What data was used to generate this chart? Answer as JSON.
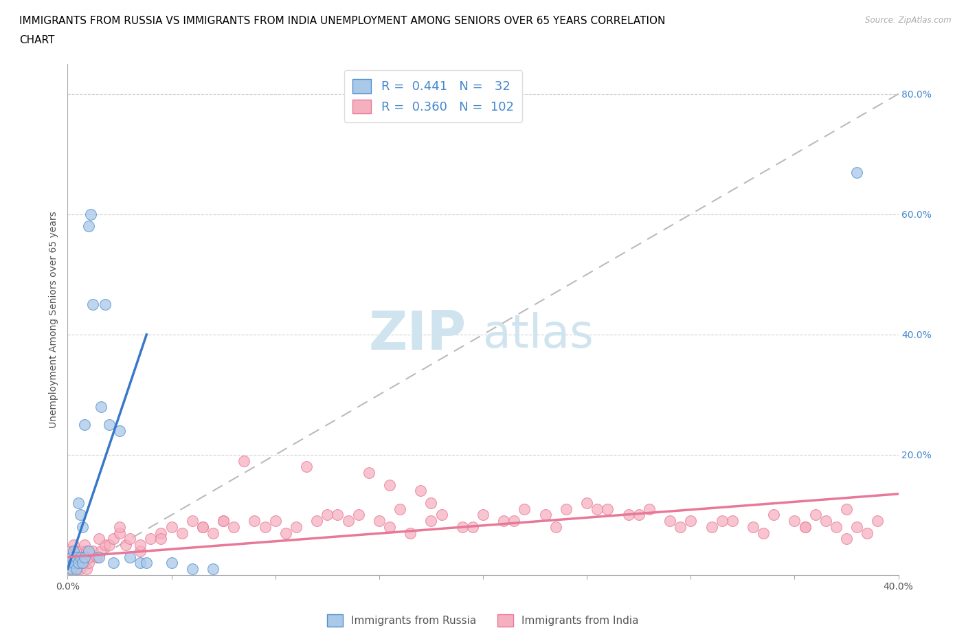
{
  "title_line1": "IMMIGRANTS FROM RUSSIA VS IMMIGRANTS FROM INDIA UNEMPLOYMENT AMONG SENIORS OVER 65 YEARS CORRELATION",
  "title_line2": "CHART",
  "source_text": "Source: ZipAtlas.com",
  "ylabel": "Unemployment Among Seniors over 65 years",
  "right_yticks": [
    "80.0%",
    "60.0%",
    "40.0%",
    "20.0%"
  ],
  "right_ytick_vals": [
    0.8,
    0.6,
    0.4,
    0.2
  ],
  "watermark_zip": "ZIP",
  "watermark_atlas": "atlas",
  "legend_russia": "Immigrants from Russia",
  "legend_india": "Immigrants from India",
  "R_russia": 0.441,
  "N_russia": 32,
  "R_india": 0.36,
  "N_india": 102,
  "russia_fill_color": "#aac8e8",
  "india_fill_color": "#f5b0c0",
  "russia_edge_color": "#5090d0",
  "india_edge_color": "#e87898",
  "russia_line_color": "#3878c8",
  "india_line_color": "#e87898",
  "russia_scatter_x": [
    0.001,
    0.002,
    0.002,
    0.003,
    0.003,
    0.004,
    0.004,
    0.005,
    0.005,
    0.006,
    0.006,
    0.007,
    0.007,
    0.008,
    0.008,
    0.01,
    0.01,
    0.011,
    0.012,
    0.015,
    0.016,
    0.018,
    0.02,
    0.022,
    0.025,
    0.03,
    0.035,
    0.038,
    0.05,
    0.06,
    0.07,
    0.38
  ],
  "russia_scatter_y": [
    0.02,
    0.01,
    0.03,
    0.02,
    0.04,
    0.01,
    0.03,
    0.02,
    0.12,
    0.1,
    0.03,
    0.08,
    0.02,
    0.25,
    0.03,
    0.04,
    0.58,
    0.6,
    0.45,
    0.03,
    0.28,
    0.45,
    0.25,
    0.02,
    0.24,
    0.03,
    0.02,
    0.02,
    0.02,
    0.01,
    0.01,
    0.67
  ],
  "india_scatter_x": [
    0.001,
    0.001,
    0.002,
    0.002,
    0.003,
    0.003,
    0.004,
    0.004,
    0.005,
    0.005,
    0.006,
    0.006,
    0.007,
    0.007,
    0.008,
    0.008,
    0.009,
    0.009,
    0.01,
    0.01,
    0.012,
    0.014,
    0.016,
    0.018,
    0.02,
    0.022,
    0.025,
    0.028,
    0.03,
    0.035,
    0.04,
    0.045,
    0.05,
    0.06,
    0.065,
    0.07,
    0.075,
    0.08,
    0.09,
    0.1,
    0.11,
    0.12,
    0.13,
    0.14,
    0.15,
    0.155,
    0.16,
    0.165,
    0.17,
    0.175,
    0.18,
    0.19,
    0.2,
    0.21,
    0.22,
    0.23,
    0.24,
    0.25,
    0.26,
    0.27,
    0.28,
    0.29,
    0.3,
    0.31,
    0.32,
    0.33,
    0.34,
    0.35,
    0.355,
    0.36,
    0.365,
    0.37,
    0.375,
    0.38,
    0.385,
    0.39,
    0.015,
    0.025,
    0.035,
    0.045,
    0.055,
    0.065,
    0.075,
    0.085,
    0.095,
    0.105,
    0.115,
    0.125,
    0.135,
    0.145,
    0.155,
    0.175,
    0.195,
    0.215,
    0.235,
    0.255,
    0.275,
    0.295,
    0.315,
    0.335,
    0.355,
    0.375
  ],
  "india_scatter_y": [
    0.02,
    0.04,
    0.01,
    0.03,
    0.02,
    0.05,
    0.01,
    0.04,
    0.02,
    0.03,
    0.01,
    0.04,
    0.02,
    0.03,
    0.02,
    0.05,
    0.01,
    0.04,
    0.02,
    0.03,
    0.04,
    0.03,
    0.04,
    0.05,
    0.05,
    0.06,
    0.07,
    0.05,
    0.06,
    0.04,
    0.06,
    0.07,
    0.08,
    0.09,
    0.08,
    0.07,
    0.09,
    0.08,
    0.09,
    0.09,
    0.08,
    0.09,
    0.1,
    0.1,
    0.09,
    0.08,
    0.11,
    0.07,
    0.14,
    0.09,
    0.1,
    0.08,
    0.1,
    0.09,
    0.11,
    0.1,
    0.11,
    0.12,
    0.11,
    0.1,
    0.11,
    0.09,
    0.09,
    0.08,
    0.09,
    0.08,
    0.1,
    0.09,
    0.08,
    0.1,
    0.09,
    0.08,
    0.11,
    0.08,
    0.07,
    0.09,
    0.06,
    0.08,
    0.05,
    0.06,
    0.07,
    0.08,
    0.09,
    0.19,
    0.08,
    0.07,
    0.18,
    0.1,
    0.09,
    0.17,
    0.15,
    0.12,
    0.08,
    0.09,
    0.08,
    0.11,
    0.1,
    0.08,
    0.09,
    0.07,
    0.08,
    0.06
  ],
  "xlim": [
    0.0,
    0.4
  ],
  "ylim": [
    0.0,
    0.85
  ],
  "grid_color": "#cccccc",
  "background_color": "#ffffff",
  "title_fontsize": 11,
  "axis_label_fontsize": 10,
  "tick_fontsize": 10,
  "legend_fontsize": 11,
  "watermark_color": "#d0e4f0",
  "watermark_fontsize_zip": 56,
  "watermark_fontsize_atlas": 48
}
